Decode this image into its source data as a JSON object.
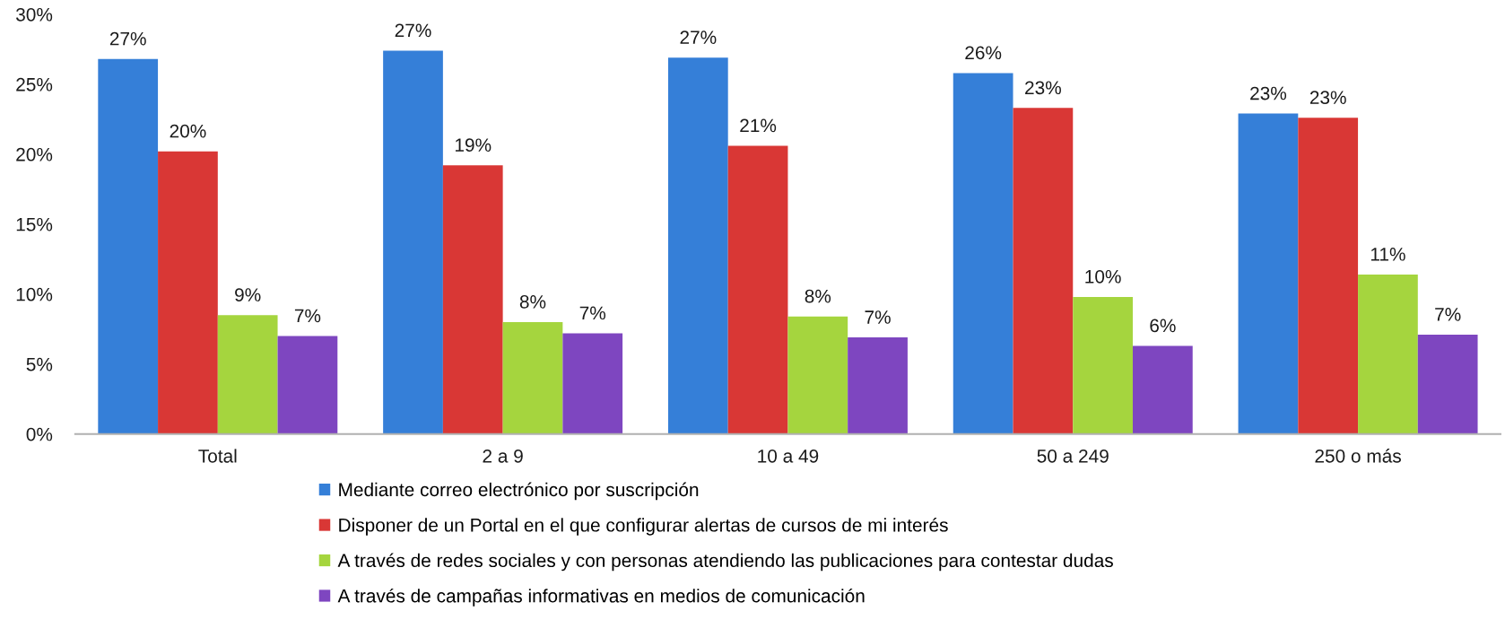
{
  "chart_data": {
    "type": "bar",
    "categories": [
      "Total",
      "2 a 9",
      "10 a 49",
      "50 a 249",
      "250 o más"
    ],
    "series": [
      {
        "name": "Mediante correo electrónico por suscripción",
        "color": "#357fd8",
        "values": [
          26.8,
          27.4,
          26.9,
          25.8,
          22.9
        ],
        "value_labels": [
          "27%",
          "27%",
          "27%",
          "26%",
          "23%"
        ]
      },
      {
        "name": "Disponer de un Portal en el que configurar alertas de cursos de mi interés",
        "color": "#d93735",
        "values": [
          20.2,
          19.2,
          20.6,
          23.3,
          22.6
        ],
        "value_labels": [
          "20%",
          "19%",
          "21%",
          "23%",
          "23%"
        ]
      },
      {
        "name": "A través de redes sociales y con personas atendiendo las publicaciones para contestar dudas",
        "color": "#a5d53e",
        "values": [
          8.5,
          8.0,
          8.4,
          9.8,
          11.4
        ],
        "value_labels": [
          "9%",
          "8%",
          "8%",
          "10%",
          "11%"
        ]
      },
      {
        "name": "A través de campañas informativas en medios de comunicación",
        "color": "#7e46c0",
        "values": [
          7.0,
          7.2,
          6.9,
          6.3,
          7.1
        ],
        "value_labels": [
          "7%",
          "7%",
          "7%",
          "6%",
          "7%"
        ]
      }
    ],
    "ylim": [
      0,
      30
    ],
    "yticks": [
      {
        "value": 0,
        "label": "0%"
      },
      {
        "value": 5,
        "label": "5%"
      },
      {
        "value": 10,
        "label": "10%"
      },
      {
        "value": 15,
        "label": "15%"
      },
      {
        "value": 20,
        "label": "20%"
      },
      {
        "value": 25,
        "label": "25%"
      },
      {
        "value": 30,
        "label": "30%"
      }
    ],
    "grid": false,
    "legend": "bottom"
  }
}
